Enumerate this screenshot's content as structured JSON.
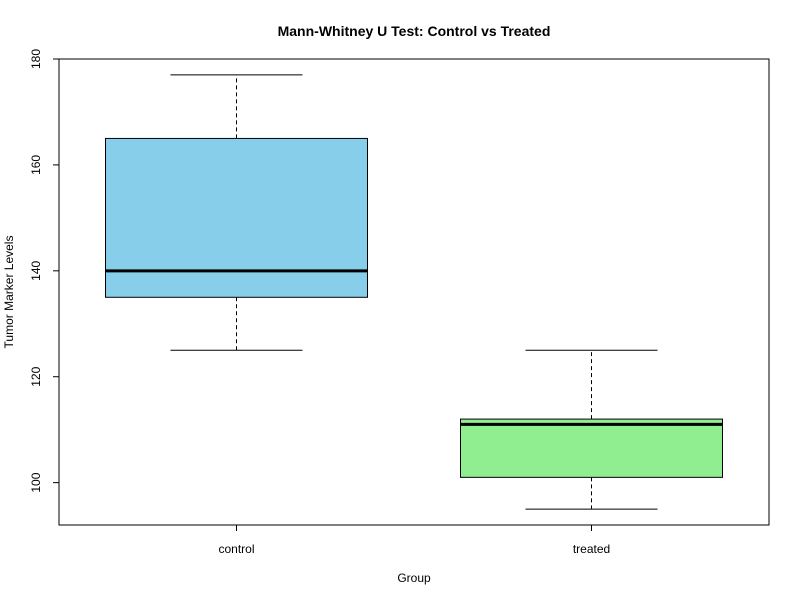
{
  "chart_data": {
    "type": "box",
    "title": "Mann-Whitney U Test: Control vs Treated",
    "xlabel": "Group",
    "ylabel": "Tumor Marker Levels",
    "ylim": [
      92,
      180
    ],
    "yticks": [
      100,
      120,
      140,
      160,
      180
    ],
    "grid": false,
    "categories": [
      "control",
      "treated"
    ],
    "boxes": [
      {
        "category": "control",
        "min": 125,
        "q1": 135,
        "median": 140,
        "q3": 165,
        "max": 177,
        "color": "#87CEEB"
      },
      {
        "category": "treated",
        "min": 95,
        "q1": 101,
        "median": 111,
        "q3": 112,
        "max": 125,
        "color": "#90EE90"
      }
    ]
  }
}
